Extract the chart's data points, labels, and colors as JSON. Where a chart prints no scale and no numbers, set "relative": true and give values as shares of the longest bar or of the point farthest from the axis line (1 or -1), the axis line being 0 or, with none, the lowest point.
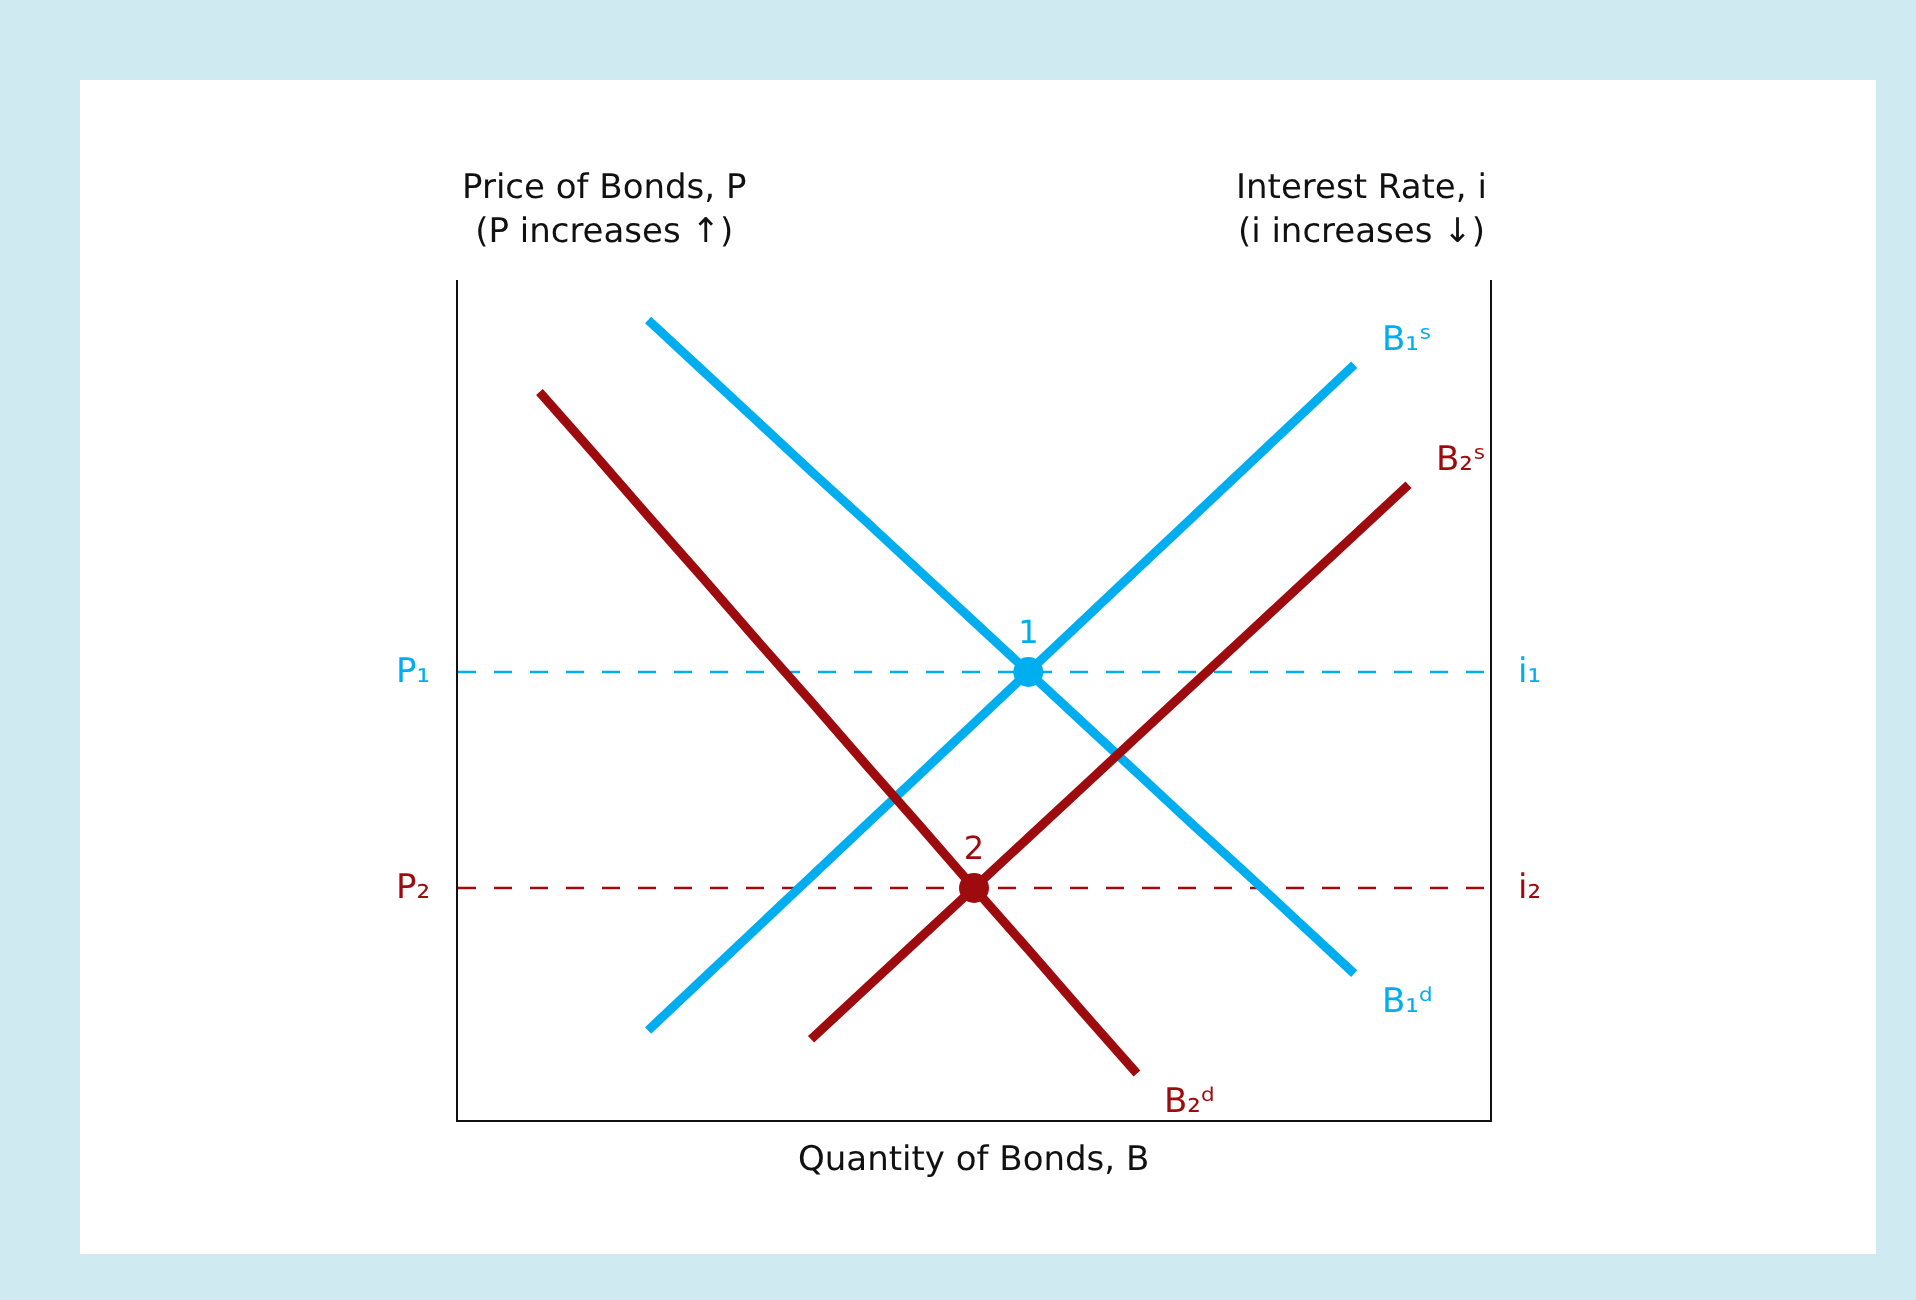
{
  "chart_data": {
    "type": "line",
    "relative": true,
    "xlabel": "Quantity of Bonds, B",
    "ylabel": "Price of Bonds, P\n(P increases ↑)",
    "y2label": "Interest Rate, i\n(i increases ↓)",
    "categories": [
      null,
      null,
      null,
      null,
      null,
      null,
      null,
      null,
      null,
      null,
      null,
      null,
      null,
      null,
      null,
      null,
      null,
      null,
      null
    ],
    "series": [
      {
        "name": "B₁ˢ",
        "color": "#00aeef",
        "values": [
          null,
          null,
          null,
          0.112,
          0.176,
          0.24,
          0.304,
          0.368,
          0.432,
          0.496,
          0.56,
          0.624,
          0.688,
          0.752,
          0.816,
          0.88,
          0.944,
          null,
          null
        ]
      },
      {
        "name": "B₁ᵈ",
        "color": "#00aeef",
        "values": [
          null,
          null,
          null,
          1.0,
          0.937,
          0.874,
          0.811,
          0.749,
          0.686,
          0.623,
          0.56,
          0.497,
          0.434,
          0.371,
          0.309,
          0.246,
          0.183,
          null,
          null
        ]
      },
      {
        "name": "B₂ᵈ",
        "color": "#9e0b0f",
        "values": [
          null,
          0.91,
          0.833,
          0.755,
          0.678,
          0.6,
          0.523,
          0.445,
          0.368,
          0.29,
          0.213,
          0.135,
          0.058,
          null,
          null,
          null,
          null,
          null,
          null
        ]
      },
      {
        "name": "B₂ˢ",
        "color": "#9e0b0f",
        "values": [
          null,
          null,
          null,
          null,
          null,
          null,
          0.101,
          0.164,
          0.227,
          0.29,
          0.353,
          0.416,
          0.479,
          0.542,
          0.605,
          0.668,
          0.731,
          0.794,
          null
        ]
      }
    ],
    "ref_lines": [
      {
        "axis": "y",
        "value": 0.56,
        "label": "P₁",
        "color": "#00aeef",
        "line_style": "dashed"
      },
      {
        "axis": "y",
        "value": 0.29,
        "label": "P₂",
        "color": "#9e0b0f",
        "line_style": "dashed"
      }
    ],
    "annotations": [
      "i₁",
      "i₂",
      {
        "text": "1",
        "y": 0.56
      },
      {
        "text": "2",
        "y": 0.29
      }
    ],
    "legend": false,
    "line_style": "solid",
    "marker": "none"
  }
}
